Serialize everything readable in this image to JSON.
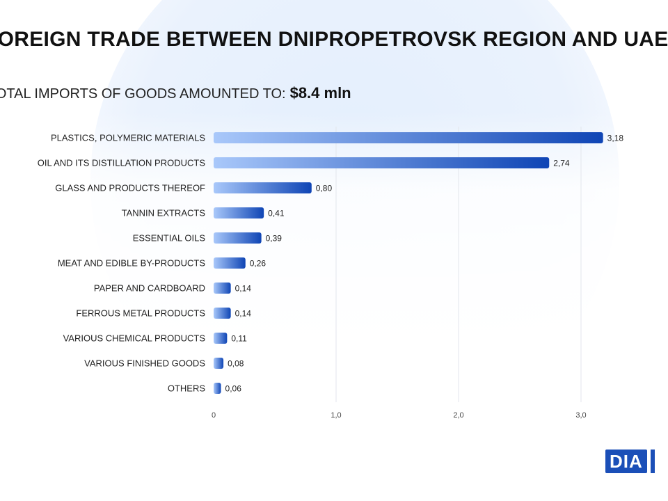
{
  "header": {
    "title": "FOREIGN TRADE BETWEEN DNIPROPETROVSK REGION AND UAE",
    "subtitle_prefix": "TOTAL IMPORTS OF GOODS AMOUNTED TO:",
    "subtitle_value": "$8.4  mln"
  },
  "logo": {
    "text": "DIA",
    "color": "#1b4fb8"
  },
  "chart_data": {
    "type": "bar",
    "orientation": "horizontal",
    "title": "FOREIGN TRADE BETWEEN DNIPROPETROVSK REGION AND UAE",
    "categories": [
      "PLASTICS, POLYMERIC MATERIALS",
      "OIL AND ITS DISTILLATION PRODUCTS",
      "GLASS AND PRODUCTS THEREOF",
      "TANNIN EXTRACTS",
      "ESSENTIAL OILS",
      "MEAT AND EDIBLE BY-PRODUCTS",
      "PAPER AND CARDBOARD",
      "FERROUS METAL PRODUCTS",
      "VARIOUS CHEMICAL PRODUCTS",
      "VARIOUS FINISHED GOODS",
      "OTHERS"
    ],
    "values": [
      3.18,
      2.74,
      0.8,
      0.41,
      0.39,
      0.26,
      0.14,
      0.14,
      0.11,
      0.08,
      0.06
    ],
    "value_labels": [
      "3,18",
      "2,74",
      "0,80",
      "0,41",
      "0,39",
      "0,26",
      "0,14",
      "0,14",
      "0,11",
      "0,08",
      "0,06"
    ],
    "xticks": [
      0,
      1,
      2,
      3
    ],
    "xtick_labels": [
      "0",
      "1,0",
      "2,0",
      "3,0"
    ],
    "xlim": [
      0,
      3.4
    ],
    "xlabel": "",
    "ylabel": "",
    "grid": true,
    "bar_color_start": "#a9c8fa",
    "bar_color_end": "#0f45b5"
  }
}
